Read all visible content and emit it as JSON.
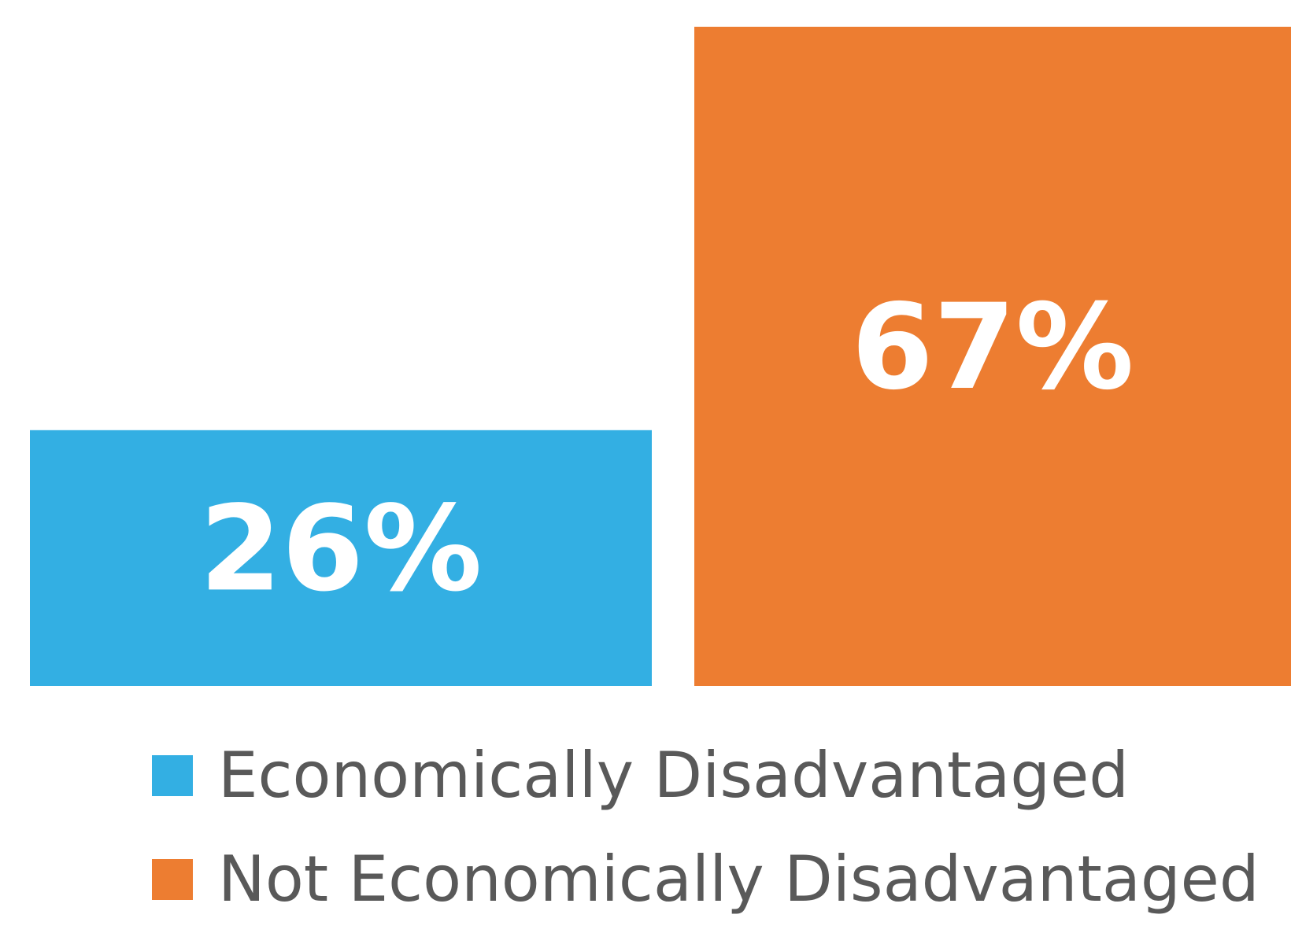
{
  "chart_data": {
    "type": "bar",
    "categories": [
      "Economically Disadvantaged",
      "Not Economically Disadvantaged"
    ],
    "series": [
      {
        "name": "Economically Disadvantaged",
        "value": 26,
        "label": "26%",
        "color": "#33AFE3"
      },
      {
        "name": "Not Economically Disadvantaged",
        "value": 67,
        "label": "67%",
        "color": "#ED7D31"
      }
    ],
    "values": [
      26,
      67
    ],
    "ylim": [
      0,
      67
    ],
    "grid": false,
    "legend_position": "bottom-left",
    "title": "",
    "xlabel": "",
    "ylabel": ""
  },
  "legend": {
    "items": [
      {
        "label": "Economically Disadvantaged",
        "color": "#33AFE3"
      },
      {
        "label": "Not Economically Disadvantaged",
        "color": "#ED7D31"
      }
    ]
  }
}
